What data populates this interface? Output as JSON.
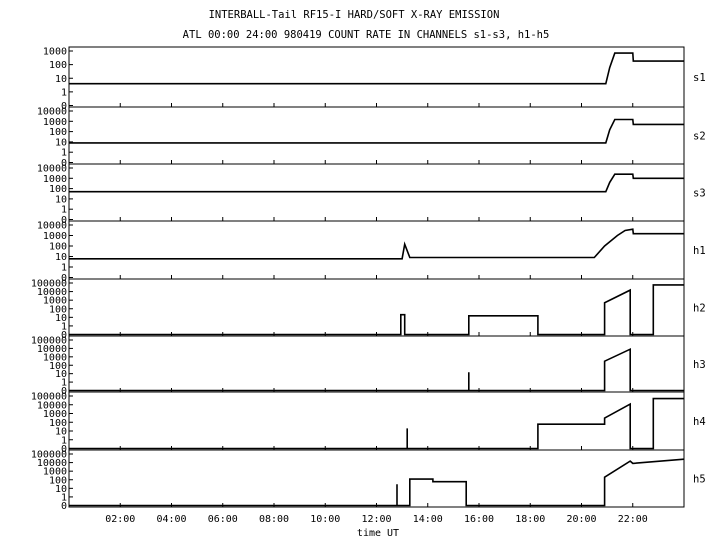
{
  "title": "INTERBALL-Tail RF15-I HARD/SOFT X-RAY EMISSION",
  "subtitle": "ATL 00:00 24:00 980419  COUNT RATE IN CHANNELS s1-s3, h1-h5",
  "chart_data": {
    "type": "line",
    "title": "INTERBALL-Tail RF15-I HARD/SOFT X-RAY EMISSION",
    "subtitle": "ATL 00:00 24:00 980419  COUNT RATE IN CHANNELS s1-s3, h1-h5",
    "xlabel": "time UT",
    "x_range": [
      0,
      24
    ],
    "x_ticks": [
      "02:00",
      "04:00",
      "06:00",
      "08:00",
      "10:00",
      "12:00",
      "14:00",
      "16:00",
      "18:00",
      "20:00",
      "22:00"
    ],
    "x_tick_values": [
      2,
      4,
      6,
      8,
      10,
      12,
      14,
      16,
      18,
      20,
      22
    ],
    "y_scale": "log",
    "grid": false,
    "panels": [
      {
        "name": "s1",
        "y_ticks": [
          "1000",
          "100",
          "10",
          "1",
          "0"
        ],
        "y_tick_values": [
          1000,
          100,
          10,
          1,
          0
        ],
        "series": [
          {
            "x": 0,
            "y": 4
          },
          {
            "x": 20.95,
            "y": 4
          },
          {
            "x": 21.1,
            "y": 60
          },
          {
            "x": 21.3,
            "y": 700
          },
          {
            "x": 22.0,
            "y": 700
          },
          {
            "x": 22.02,
            "y": 180
          },
          {
            "x": 24,
            "y": 180
          }
        ]
      },
      {
        "name": "s2",
        "y_ticks": [
          "10000",
          "1000",
          "100",
          "10",
          "1",
          "0"
        ],
        "y_tick_values": [
          10000,
          1000,
          100,
          10,
          1,
          0
        ],
        "series": [
          {
            "x": 0,
            "y": 8
          },
          {
            "x": 20.95,
            "y": 8
          },
          {
            "x": 21.1,
            "y": 150
          },
          {
            "x": 21.3,
            "y": 1500
          },
          {
            "x": 22.0,
            "y": 1500
          },
          {
            "x": 22.02,
            "y": 500
          },
          {
            "x": 24,
            "y": 500
          }
        ]
      },
      {
        "name": "s3",
        "y_ticks": [
          "10000",
          "1000",
          "100",
          "10",
          "1",
          "0"
        ],
        "y_tick_values": [
          10000,
          1000,
          100,
          10,
          1,
          0
        ],
        "series": [
          {
            "x": 0,
            "y": 50
          },
          {
            "x": 20.95,
            "y": 50
          },
          {
            "x": 21.1,
            "y": 400
          },
          {
            "x": 21.3,
            "y": 2500
          },
          {
            "x": 22.0,
            "y": 2500
          },
          {
            "x": 22.02,
            "y": 1000
          },
          {
            "x": 24,
            "y": 1000
          }
        ]
      },
      {
        "name": "h1",
        "y_ticks": [
          "10000",
          "1000",
          "100",
          "10",
          "1",
          "0"
        ],
        "y_tick_values": [
          10000,
          1000,
          100,
          10,
          1,
          0
        ],
        "series": [
          {
            "x": 0,
            "y": 6
          },
          {
            "x": 13.0,
            "y": 6
          },
          {
            "x": 13.1,
            "y": 150
          },
          {
            "x": 13.3,
            "y": 8
          },
          {
            "x": 20.5,
            "y": 8
          },
          {
            "x": 20.9,
            "y": 100
          },
          {
            "x": 21.4,
            "y": 1000
          },
          {
            "x": 21.7,
            "y": 3000
          },
          {
            "x": 22.0,
            "y": 4000
          },
          {
            "x": 22.02,
            "y": 1500
          },
          {
            "x": 24,
            "y": 1500
          }
        ]
      },
      {
        "name": "h2",
        "y_ticks": [
          "100000",
          "10000",
          "1000",
          "100",
          "10",
          "1",
          "0"
        ],
        "y_tick_values": [
          100000,
          10000,
          1000,
          100,
          10,
          1,
          0
        ],
        "series": [
          {
            "x": 0,
            "y": 0
          },
          {
            "x": 12.95,
            "y": 0
          },
          {
            "x": 12.95,
            "y": 20
          },
          {
            "x": 13.1,
            "y": 20
          },
          {
            "x": 13.1,
            "y": 0
          },
          {
            "x": 15.6,
            "y": 0
          },
          {
            "x": 15.6,
            "y": 15
          },
          {
            "x": 18.3,
            "y": 15
          },
          {
            "x": 18.3,
            "y": 0
          },
          {
            "x": 20.9,
            "y": 0
          },
          {
            "x": 20.9,
            "y": 500
          },
          {
            "x": 21.9,
            "y": 15000
          },
          {
            "x": 21.9,
            "y": 0
          },
          {
            "x": 22.8,
            "y": 0
          },
          {
            "x": 22.8,
            "y": 60000
          },
          {
            "x": 24,
            "y": 60000
          }
        ]
      },
      {
        "name": "h3",
        "y_ticks": [
          "100000",
          "10000",
          "1000",
          "100",
          "10",
          "1",
          "0"
        ],
        "y_tick_values": [
          100000,
          10000,
          1000,
          100,
          10,
          1,
          0
        ],
        "series": [
          {
            "x": 0,
            "y": 0
          },
          {
            "x": 15.6,
            "y": 0
          },
          {
            "x": 15.6,
            "y": 15
          },
          {
            "x": 15.6,
            "y": 0
          },
          {
            "x": 20.9,
            "y": 0
          },
          {
            "x": 20.9,
            "y": 300
          },
          {
            "x": 21.9,
            "y": 8000
          },
          {
            "x": 21.9,
            "y": 0
          },
          {
            "x": 24,
            "y": 0
          }
        ]
      },
      {
        "name": "h4",
        "y_ticks": [
          "100000",
          "10000",
          "1000",
          "100",
          "10",
          "1",
          "0"
        ],
        "y_tick_values": [
          100000,
          10000,
          1000,
          100,
          10,
          1,
          0
        ],
        "series": [
          {
            "x": 0,
            "y": 0
          },
          {
            "x": 13.2,
            "y": 0
          },
          {
            "x": 13.2,
            "y": 20
          },
          {
            "x": 13.2,
            "y": 0
          },
          {
            "x": 18.3,
            "y": 0
          },
          {
            "x": 18.3,
            "y": 60
          },
          {
            "x": 20.9,
            "y": 60
          },
          {
            "x": 20.9,
            "y": 300
          },
          {
            "x": 21.9,
            "y": 12000
          },
          {
            "x": 21.9,
            "y": 0
          },
          {
            "x": 22.8,
            "y": 0
          },
          {
            "x": 22.8,
            "y": 50000
          },
          {
            "x": 24,
            "y": 50000
          }
        ]
      },
      {
        "name": "h5",
        "y_ticks": [
          "100000",
          "10000",
          "1000",
          "100",
          "10",
          "1",
          "0"
        ],
        "y_tick_values": [
          100000,
          10000,
          1000,
          100,
          10,
          1,
          0
        ],
        "series": [
          {
            "x": 0,
            "y": 0
          },
          {
            "x": 12.8,
            "y": 0
          },
          {
            "x": 12.8,
            "y": 30
          },
          {
            "x": 12.8,
            "y": 0
          },
          {
            "x": 13.3,
            "y": 0
          },
          {
            "x": 13.3,
            "y": 120
          },
          {
            "x": 14.2,
            "y": 120
          },
          {
            "x": 14.2,
            "y": 60
          },
          {
            "x": 15.5,
            "y": 60
          },
          {
            "x": 15.5,
            "y": 0
          },
          {
            "x": 20.9,
            "y": 0
          },
          {
            "x": 20.9,
            "y": 200
          },
          {
            "x": 21.9,
            "y": 15000
          },
          {
            "x": 22.0,
            "y": 8000
          },
          {
            "x": 24,
            "y": 25000
          }
        ]
      }
    ]
  }
}
